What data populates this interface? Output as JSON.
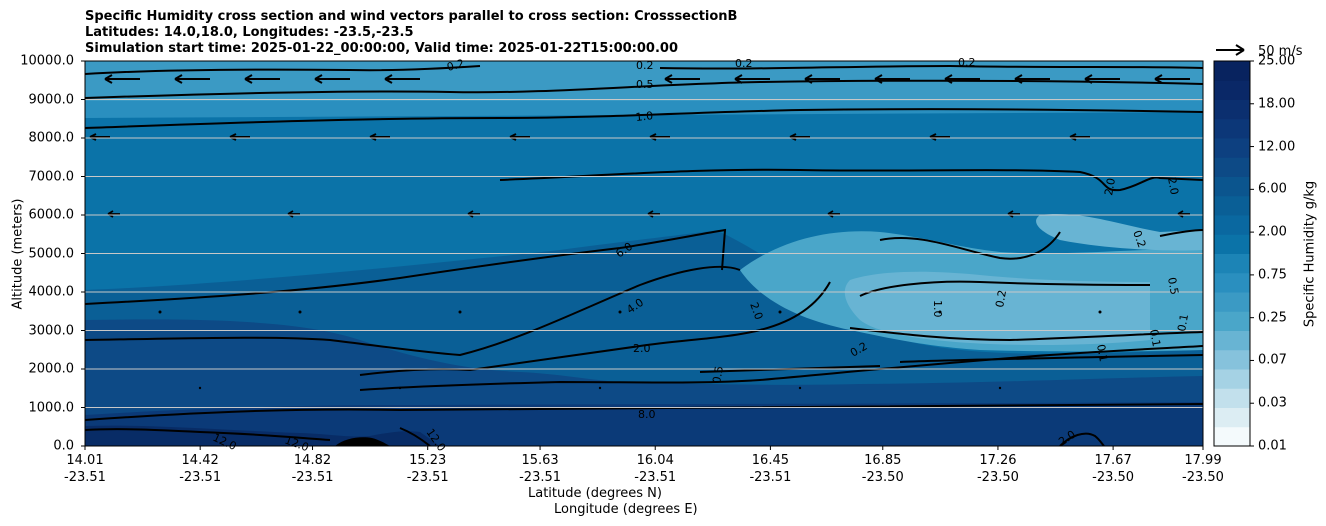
{
  "title_lines": [
    "Specific Humidity cross section and wind vectors parallel to cross section: CrosssectionB",
    "Latitudes: 14.0,18.0, Longitudes: -23.5,-23.5",
    "Simulation start time: 2025-01-22_00:00:00, Valid time: 2025-01-22T15:00:00.00"
  ],
  "colors": {
    "deep": "#0b2f6f",
    "dark": "#0d4a86",
    "mid": "#0a5f96",
    "mid2": "#0b73a8",
    "light": "#2a8fbf",
    "lighter": "#4aa6c9",
    "pale": "#68b4d3",
    "contour": "#000000"
  },
  "chart_data": {
    "type": "contour",
    "title": "Specific Humidity cross section and wind vectors parallel to cross section: CrosssectionB",
    "ylabel": "Altitude (meters)",
    "xlabel_lat": "Latitude (degrees N)",
    "xlabel_lon": "Longitude (degrees E)",
    "ylim": [
      0,
      10000
    ],
    "y_ticks": [
      "0.0",
      "1000.0",
      "2000.0",
      "3000.0",
      "4000.0",
      "5000.0",
      "6000.0",
      "7000.0",
      "8000.0",
      "9000.0",
      "10000.0"
    ],
    "x_ticks_lat": [
      "14.01",
      "14.42",
      "14.82",
      "15.23",
      "15.63",
      "16.04",
      "16.45",
      "16.85",
      "17.26",
      "17.67",
      "17.99"
    ],
    "x_ticks_lon": [
      "-23.51",
      "-23.51",
      "-23.51",
      "-23.51",
      "-23.51",
      "-23.51",
      "-23.51",
      "-23.50",
      "-23.50",
      "-23.50",
      "-23.50"
    ],
    "contour_labels": [
      "0.2",
      "0.2",
      "0.2",
      "0.2",
      "0.5",
      "1.0",
      "2.0",
      "2.0",
      "0.2",
      "0.5",
      "6.0",
      "4.0",
      "2.0",
      "2.0",
      "0.2",
      "0.2",
      "1.0",
      "0.5",
      "0.1",
      "0.1",
      "0.1",
      "8.0",
      "12.0",
      "12.0",
      "12.0",
      "2.0"
    ],
    "colorbar": {
      "label": "Specific Humidity g/kg",
      "ticks": [
        "25.00",
        "18.00",
        "12.00",
        "6.00",
        "2.00",
        "0.75",
        "0.25",
        "0.07",
        "0.03",
        "0.01"
      ]
    },
    "vector_key": "50 m/s"
  }
}
